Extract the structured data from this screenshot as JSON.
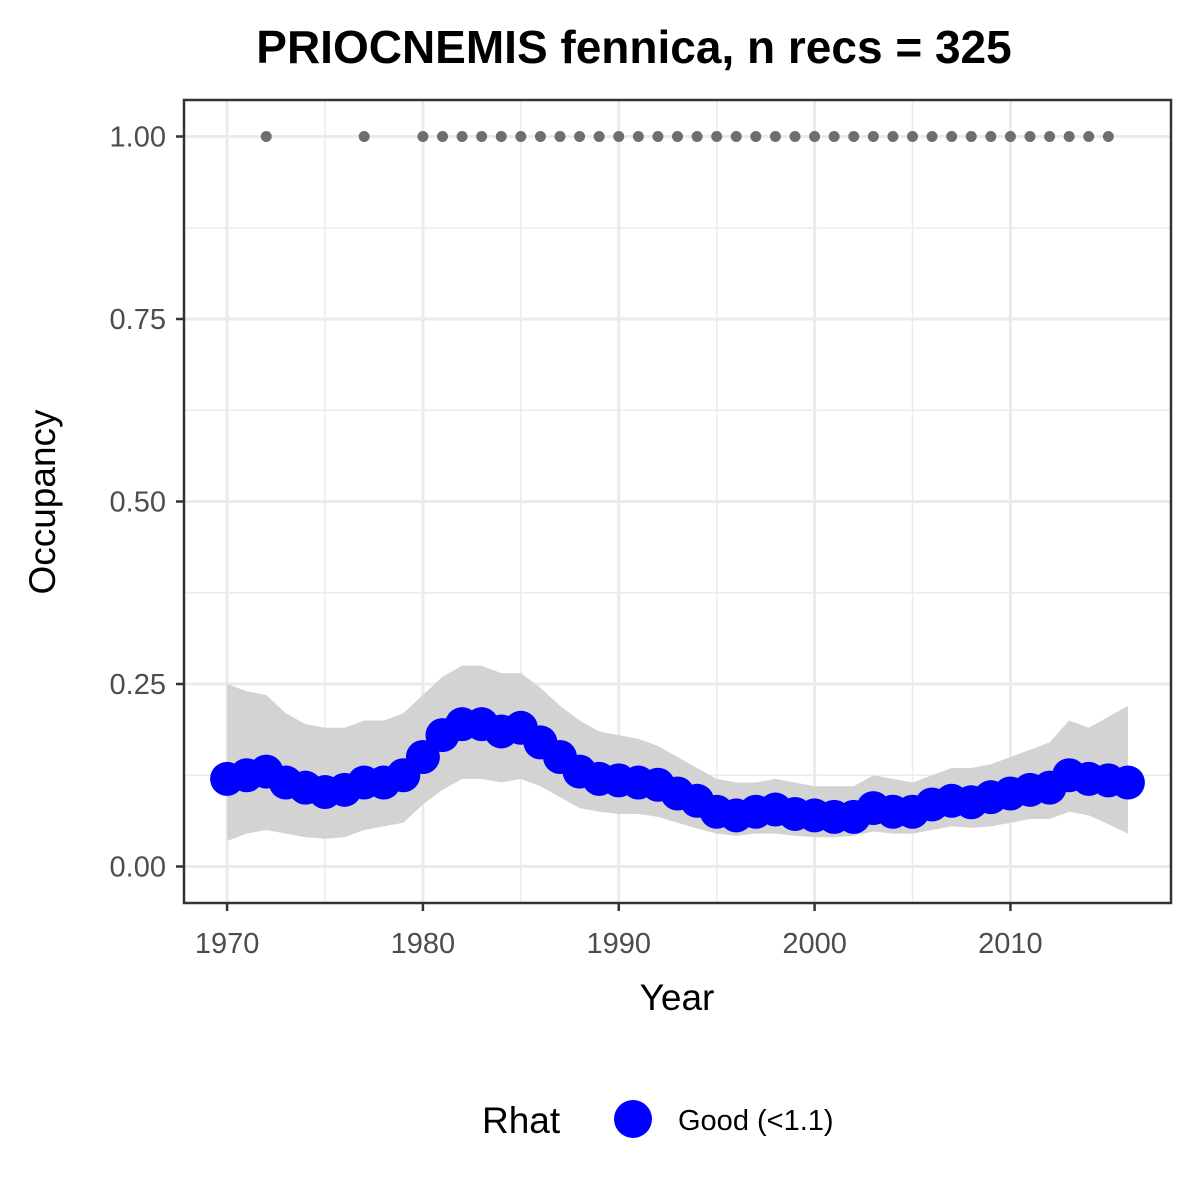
{
  "chart_data": {
    "type": "line",
    "title": "PRIOCNEMIS fennica, n recs = 325",
    "xlabel": "Year",
    "ylabel": "Occupancy",
    "xlim": [
      1967.8,
      2018.2
    ],
    "ylim": [
      -0.05,
      1.05
    ],
    "x_ticks": [
      1970,
      1980,
      1990,
      2000,
      2010
    ],
    "x_tick_labels": [
      "1970",
      "1980",
      "1990",
      "2000",
      "2010"
    ],
    "y_ticks": [
      0,
      0.25,
      0.5,
      0.75,
      1.0
    ],
    "y_tick_labels": [
      "0.00",
      "0.25",
      "0.50",
      "0.75",
      "1.00"
    ],
    "grid": true,
    "colors": {
      "series": "#0000ff",
      "ribbon": "#d3d3d3",
      "records": "#6e6e6e",
      "panel_border": "#333333",
      "grid": "#ebebeb"
    },
    "legend": {
      "title": "Rhat",
      "position": "bottom",
      "entries": [
        {
          "label": "Good (<1.1)",
          "color": "#0000ff"
        }
      ]
    },
    "series": [
      {
        "name": "Good (<1.1)",
        "x": [
          1970,
          1971,
          1972,
          1973,
          1974,
          1975,
          1976,
          1977,
          1978,
          1979,
          1980,
          1981,
          1982,
          1983,
          1984,
          1985,
          1986,
          1987,
          1988,
          1989,
          1990,
          1991,
          1992,
          1993,
          1994,
          1995,
          1996,
          1997,
          1998,
          1999,
          2000,
          2001,
          2002,
          2003,
          2004,
          2005,
          2006,
          2007,
          2008,
          2009,
          2010,
          2011,
          2012,
          2013,
          2014,
          2015,
          2016
        ],
        "y": [
          0.12,
          0.125,
          0.13,
          0.115,
          0.108,
          0.102,
          0.105,
          0.115,
          0.115,
          0.125,
          0.15,
          0.18,
          0.195,
          0.195,
          0.185,
          0.19,
          0.17,
          0.15,
          0.13,
          0.12,
          0.118,
          0.115,
          0.112,
          0.1,
          0.09,
          0.075,
          0.07,
          0.075,
          0.078,
          0.072,
          0.07,
          0.068,
          0.068,
          0.08,
          0.075,
          0.075,
          0.085,
          0.09,
          0.088,
          0.095,
          0.1,
          0.105,
          0.108,
          0.125,
          0.12,
          0.118,
          0.115
        ],
        "lower": [
          0.035,
          0.045,
          0.05,
          0.045,
          0.04,
          0.038,
          0.04,
          0.05,
          0.055,
          0.06,
          0.085,
          0.105,
          0.12,
          0.12,
          0.115,
          0.12,
          0.11,
          0.095,
          0.08,
          0.075,
          0.072,
          0.072,
          0.068,
          0.06,
          0.052,
          0.045,
          0.042,
          0.045,
          0.045,
          0.042,
          0.04,
          0.04,
          0.042,
          0.048,
          0.045,
          0.045,
          0.05,
          0.055,
          0.053,
          0.055,
          0.06,
          0.065,
          0.065,
          0.075,
          0.07,
          0.058,
          0.045
        ],
        "upper": [
          0.25,
          0.24,
          0.235,
          0.21,
          0.195,
          0.19,
          0.19,
          0.2,
          0.2,
          0.21,
          0.235,
          0.26,
          0.275,
          0.275,
          0.265,
          0.265,
          0.245,
          0.22,
          0.2,
          0.185,
          0.18,
          0.175,
          0.165,
          0.15,
          0.135,
          0.12,
          0.115,
          0.115,
          0.12,
          0.115,
          0.11,
          0.11,
          0.11,
          0.125,
          0.12,
          0.115,
          0.125,
          0.135,
          0.135,
          0.14,
          0.15,
          0.16,
          0.17,
          0.2,
          0.19,
          0.205,
          0.22
        ]
      }
    ],
    "records": {
      "y": 1.0,
      "x": [
        1972,
        1977,
        1980,
        1981,
        1982,
        1983,
        1984,
        1985,
        1986,
        1987,
        1988,
        1989,
        1990,
        1991,
        1992,
        1993,
        1994,
        1995,
        1996,
        1997,
        1998,
        1999,
        2000,
        2001,
        2002,
        2003,
        2004,
        2005,
        2006,
        2007,
        2008,
        2009,
        2010,
        2011,
        2012,
        2013,
        2014,
        2015
      ]
    }
  }
}
